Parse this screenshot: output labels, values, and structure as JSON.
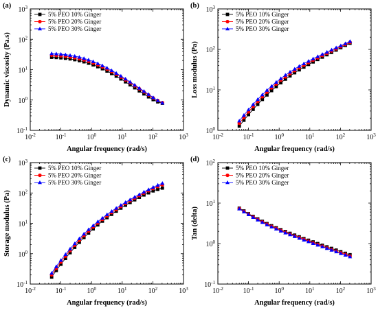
{
  "chart_data": [
    {
      "type": "line",
      "panel_label": "(a)",
      "xlabel": "Angular frequency (rad/s)",
      "ylabel": "Dynamic viscosity (Pa.s)",
      "xscale": "log",
      "yscale": "log",
      "xlim": [
        0.01,
        1000
      ],
      "ylim": [
        0.1,
        1000
      ],
      "x_ticks": [
        {
          "v": 0.01,
          "b": "10",
          "e": "-2"
        },
        {
          "v": 0.1,
          "b": "10",
          "e": "-1"
        },
        {
          "v": 1,
          "b": "10",
          "e": "0"
        },
        {
          "v": 10,
          "b": "10",
          "e": "1"
        },
        {
          "v": 100,
          "b": "10",
          "e": "2"
        },
        {
          "v": 1000,
          "b": "10",
          "e": "3"
        }
      ],
      "y_ticks": [
        {
          "v": 0.1,
          "b": "10",
          "e": "-1"
        },
        {
          "v": 1,
          "b": "10",
          "e": "0"
        },
        {
          "v": 10,
          "b": "10",
          "e": "1"
        },
        {
          "v": 100,
          "b": "10",
          "e": "2"
        },
        {
          "v": 1000,
          "b": "10",
          "e": "3"
        }
      ],
      "legend_position": "top-left",
      "x": [
        0.05,
        0.0707,
        0.1,
        0.1414,
        0.2,
        0.2828,
        0.4,
        0.5657,
        0.8,
        1.131,
        1.6,
        2.263,
        3.2,
        4.525,
        6.4,
        9.051,
        12.8,
        18.1,
        25.6,
        36.2,
        51.2,
        72.4,
        102.4,
        144.8,
        204.8
      ],
      "series": [
        {
          "name": "5% PEO 10% Ginger",
          "color": "#000000",
          "marker": "square",
          "values": [
            25.5,
            25.1,
            24.5,
            23.7,
            22.6,
            21.3,
            19.8,
            18.1,
            16.3,
            14.4,
            12.5,
            10.7,
            9.0,
            7.45,
            6.1,
            4.94,
            3.97,
            3.17,
            2.52,
            2.0,
            1.59,
            1.27,
            1.03,
            0.87,
            0.78
          ]
        },
        {
          "name": "5% PEO 20% Ginger",
          "color": "#ff0000",
          "marker": "circle",
          "values": [
            30.0,
            29.4,
            28.6,
            27.6,
            26.3,
            24.7,
            22.9,
            20.9,
            18.8,
            16.6,
            14.4,
            12.3,
            10.4,
            8.6,
            7.05,
            5.72,
            4.6,
            3.68,
            2.93,
            2.33,
            1.85,
            1.47,
            1.17,
            0.96,
            0.82
          ]
        },
        {
          "name": "5% PEO 30% Ginger",
          "color": "#0000ff",
          "marker": "triangle",
          "values": [
            34.0,
            33.3,
            32.4,
            31.2,
            29.7,
            27.9,
            25.8,
            23.5,
            21.0,
            18.5,
            16.0,
            13.6,
            11.4,
            9.4,
            7.65,
            6.18,
            4.95,
            3.94,
            3.12,
            2.47,
            1.95,
            1.54,
            1.21,
            0.97,
            0.8
          ]
        }
      ]
    },
    {
      "type": "line",
      "panel_label": "(b)",
      "xlabel": "Angular frequency (rad/s)",
      "ylabel": "Loss modulus (Pa)",
      "xscale": "log",
      "yscale": "log",
      "xlim": [
        0.01,
        1000
      ],
      "ylim": [
        1,
        1000
      ],
      "x_ticks": [
        {
          "v": 0.01,
          "b": "10",
          "e": "-2"
        },
        {
          "v": 0.1,
          "b": "10",
          "e": "-1"
        },
        {
          "v": 1,
          "b": "10",
          "e": "0"
        },
        {
          "v": 10,
          "b": "10",
          "e": "1"
        },
        {
          "v": 100,
          "b": "10",
          "e": "2"
        },
        {
          "v": 1000,
          "b": "10",
          "e": "3"
        }
      ],
      "y_ticks": [
        {
          "v": 1,
          "b": "10",
          "e": "0"
        },
        {
          "v": 10,
          "b": "10",
          "e": "1"
        },
        {
          "v": 100,
          "b": "10",
          "e": "2"
        },
        {
          "v": 1000,
          "b": "10",
          "e": "3"
        }
      ],
      "legend_position": "top-left",
      "x": [
        0.05,
        0.0707,
        0.1,
        0.1414,
        0.2,
        0.2828,
        0.4,
        0.5657,
        0.8,
        1.131,
        1.6,
        2.263,
        3.2,
        4.525,
        6.4,
        9.051,
        12.8,
        18.1,
        25.6,
        36.2,
        51.2,
        72.4,
        102.4,
        144.8,
        204.8
      ],
      "series": [
        {
          "name": "5% PEO 10% Ginger",
          "color": "#000000",
          "marker": "square",
          "values": [
            1.28,
            1.78,
            2.45,
            3.3,
            4.4,
            5.8,
            7.5,
            9.6,
            12.1,
            15.0,
            18.4,
            22.2,
            26.5,
            31.3,
            36.6,
            42.5,
            49.0,
            56.3,
            64.5,
            73.8,
            84.3,
            96.5,
            110.5,
            126.0,
            142.0
          ]
        },
        {
          "name": "5% PEO 20% Ginger",
          "color": "#ff0000",
          "marker": "circle",
          "values": [
            1.5,
            2.08,
            2.86,
            3.88,
            5.18,
            6.8,
            8.8,
            11.2,
            14.0,
            17.3,
            21.0,
            25.2,
            29.9,
            35.1,
            40.8,
            47.2,
            54.2,
            61.9,
            70.6,
            80.3,
            91.3,
            103.5,
            117.5,
            133.0,
            150.0
          ]
        },
        {
          "name": "5% PEO 30% Ginger",
          "color": "#0000ff",
          "marker": "triangle",
          "values": [
            1.72,
            2.37,
            3.24,
            4.38,
            5.82,
            7.6,
            9.8,
            12.4,
            15.5,
            19.1,
            23.2,
            27.7,
            32.8,
            38.4,
            44.5,
            51.3,
            58.8,
            67.0,
            76.0,
            86.0,
            97.5,
            110.0,
            124.0,
            140.0,
            158.0
          ]
        }
      ]
    },
    {
      "type": "line",
      "panel_label": "(c)",
      "xlabel": "Angular frequency (rad/s)",
      "ylabel": "Storage modulus (Pa)",
      "xscale": "log",
      "yscale": "log",
      "xlim": [
        0.01,
        1000
      ],
      "ylim": [
        0.1,
        1000
      ],
      "x_ticks": [
        {
          "v": 0.01,
          "b": "10",
          "e": "-2"
        },
        {
          "v": 0.1,
          "b": "10",
          "e": "-1"
        },
        {
          "v": 1,
          "b": "10",
          "e": "0"
        },
        {
          "v": 10,
          "b": "10",
          "e": "1"
        },
        {
          "v": 100,
          "b": "10",
          "e": "2"
        },
        {
          "v": 1000,
          "b": "10",
          "e": "3"
        }
      ],
      "y_ticks": [
        {
          "v": 0.1,
          "b": "10",
          "e": "-1"
        },
        {
          "v": 1,
          "b": "10",
          "e": "0"
        },
        {
          "v": 10,
          "b": "10",
          "e": "1"
        },
        {
          "v": 100,
          "b": "10",
          "e": "2"
        },
        {
          "v": 1000,
          "b": "10",
          "e": "3"
        }
      ],
      "legend_position": "top-left",
      "x": [
        0.05,
        0.0707,
        0.1,
        0.1414,
        0.2,
        0.2828,
        0.4,
        0.5657,
        0.8,
        1.131,
        1.6,
        2.263,
        3.2,
        4.525,
        6.4,
        9.051,
        12.8,
        18.1,
        25.6,
        36.2,
        51.2,
        72.4,
        102.4,
        144.8,
        204.8
      ],
      "series": [
        {
          "name": "5% PEO 10% Ginger",
          "color": "#000000",
          "marker": "square",
          "values": [
            0.17,
            0.28,
            0.45,
            0.7,
            1.08,
            1.62,
            2.38,
            3.42,
            4.8,
            6.6,
            8.9,
            11.8,
            15.4,
            19.8,
            25.2,
            31.7,
            39.5,
            48.7,
            59.5,
            72.0,
            86.0,
            101.0,
            117.0,
            132.0,
            145.0
          ]
        },
        {
          "name": "5% PEO 20% Ginger",
          "color": "#ff0000",
          "marker": "circle",
          "values": [
            0.2,
            0.33,
            0.53,
            0.83,
            1.27,
            1.9,
            2.78,
            3.97,
            5.55,
            7.6,
            10.2,
            13.5,
            17.6,
            22.6,
            28.7,
            36.0,
            44.8,
            55.2,
            67.5,
            82.0,
            99.0,
            118.0,
            140.0,
            163.0,
            185.0
          ]
        },
        {
          "name": "5% PEO 30% Ginger",
          "color": "#0000ff",
          "marker": "triangle",
          "values": [
            0.23,
            0.38,
            0.61,
            0.95,
            1.45,
            2.16,
            3.15,
            4.48,
            6.25,
            8.5,
            11.4,
            15.0,
            19.5,
            25.0,
            31.6,
            39.6,
            49.1,
            60.4,
            73.8,
            89.5,
            108.0,
            130.0,
            155.0,
            182.0,
            210.0
          ]
        }
      ]
    },
    {
      "type": "line",
      "panel_label": "(d)",
      "xlabel": "Angular frequency (rad/s)",
      "ylabel": "Tan (delta)",
      "xscale": "log",
      "yscale": "log",
      "xlim": [
        0.01,
        1000
      ],
      "ylim": [
        0.1,
        100
      ],
      "x_ticks": [
        {
          "v": 0.01,
          "b": "10",
          "e": "-2"
        },
        {
          "v": 0.1,
          "b": "10",
          "e": "-1"
        },
        {
          "v": 1,
          "b": "10",
          "e": "0"
        },
        {
          "v": 10,
          "b": "10",
          "e": "1"
        },
        {
          "v": 100,
          "b": "10",
          "e": "2"
        },
        {
          "v": 1000,
          "b": "10",
          "e": "3"
        }
      ],
      "y_ticks": [
        {
          "v": 0.1,
          "b": "10",
          "e": "-1"
        },
        {
          "v": 1,
          "b": "10",
          "e": "0"
        },
        {
          "v": 10,
          "b": "10",
          "e": "1"
        },
        {
          "v": 100,
          "b": "10",
          "e": "2"
        }
      ],
      "legend_position": "top-left",
      "x": [
        0.05,
        0.0707,
        0.1,
        0.1414,
        0.2,
        0.2828,
        0.4,
        0.5657,
        0.8,
        1.131,
        1.6,
        2.263,
        3.2,
        4.525,
        6.4,
        9.051,
        12.8,
        18.1,
        25.6,
        36.2,
        51.2,
        72.4,
        102.4,
        144.8,
        204.8
      ],
      "series": [
        {
          "name": "5% PEO 10% Ginger",
          "color": "#000000",
          "marker": "square",
          "values": [
            7.5,
            6.4,
            5.45,
            4.7,
            4.07,
            3.55,
            3.12,
            2.76,
            2.46,
            2.2,
            1.98,
            1.79,
            1.62,
            1.47,
            1.33,
            1.21,
            1.1,
            1.0,
            0.91,
            0.83,
            0.76,
            0.69,
            0.63,
            0.575,
            0.53
          ]
        },
        {
          "name": "5% PEO 20% Ginger",
          "color": "#ff0000",
          "marker": "circle",
          "values": [
            7.3,
            6.2,
            5.3,
            4.55,
            3.93,
            3.42,
            3.0,
            2.65,
            2.36,
            2.1,
            1.89,
            1.7,
            1.54,
            1.4,
            1.27,
            1.15,
            1.04,
            0.95,
            0.86,
            0.78,
            0.71,
            0.65,
            0.59,
            0.54,
            0.49
          ]
        },
        {
          "name": "5% PEO 30% Ginger",
          "color": "#0000ff",
          "marker": "triangle",
          "values": [
            7.2,
            6.1,
            5.2,
            4.45,
            3.85,
            3.35,
            2.93,
            2.59,
            2.3,
            2.05,
            1.84,
            1.66,
            1.5,
            1.36,
            1.23,
            1.12,
            1.01,
            0.92,
            0.84,
            0.76,
            0.69,
            0.63,
            0.57,
            0.52,
            0.475
          ]
        }
      ]
    }
  ]
}
